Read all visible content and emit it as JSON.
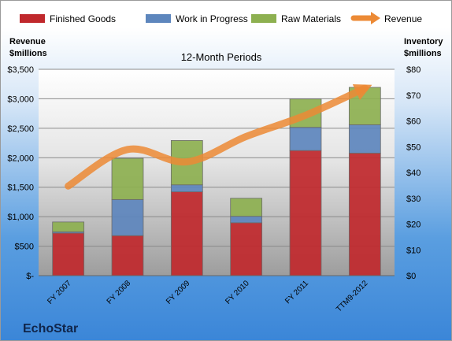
{
  "chart_data": {
    "type": "bar",
    "stacked": true,
    "title": "12-Month Periods",
    "company": "EchoStar",
    "categories": [
      "FY 2007",
      "FY 2008",
      "FY 2009",
      "FY 2010",
      "FY 2011",
      "TTM9-2012"
    ],
    "series": [
      {
        "name": "Finished Goods",
        "axis": "right",
        "color": "#c0282c",
        "values": [
          16.5,
          15.5,
          32.5,
          20.5,
          48.5,
          47.5
        ]
      },
      {
        "name": "Work in Progress",
        "axis": "right",
        "color": "#5d86bd",
        "values": [
          0.5,
          14,
          2.7,
          2.5,
          9,
          11
        ]
      },
      {
        "name": "Raw Materials",
        "axis": "right",
        "color": "#8db050",
        "values": [
          3.8,
          16,
          17.2,
          7,
          11,
          14.5
        ]
      }
    ],
    "line_series": {
      "name": "Revenue",
      "axis": "left",
      "color": "#ec8a35",
      "values": [
        1520,
        2140,
        1930,
        2360,
        2720,
        3180
      ]
    },
    "left_axis": {
      "label": "Revenue\n$millions",
      "range": [
        0,
        3500
      ],
      "ticks": [
        "$-",
        "$500",
        "$1,000",
        "$1,500",
        "$2,000",
        "$2,500",
        "$3,000",
        "$3,500"
      ]
    },
    "right_axis": {
      "label": "Inventory\n$millions",
      "range": [
        0,
        80
      ],
      "ticks": [
        "$0",
        "$10",
        "$20",
        "$30",
        "$40",
        "$50",
        "$60",
        "$70",
        "$80"
      ]
    },
    "grid": true,
    "legend": "top"
  }
}
